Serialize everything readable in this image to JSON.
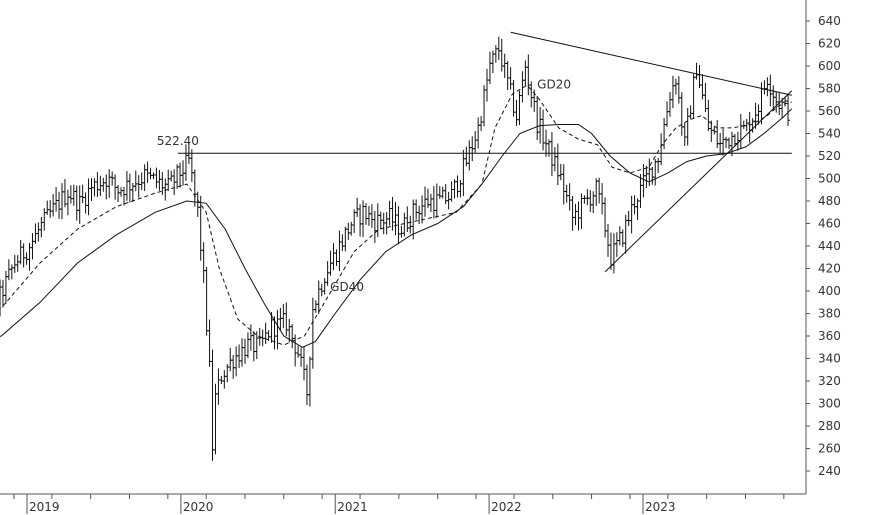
{
  "chart_data": {
    "type": "line",
    "title": "",
    "xlabel": "",
    "ylabel": "",
    "ylim": [
      240,
      640
    ],
    "xlim": [
      "2018-08-01",
      "2023-12-20"
    ],
    "y_ticks": [
      "640",
      "620",
      "600",
      "580",
      "560",
      "540",
      "520",
      "500",
      "480",
      "460",
      "440",
      "420",
      "400",
      "380",
      "360",
      "340",
      "320",
      "300",
      "280",
      "260",
      "240"
    ],
    "x_ticks": [
      {
        "label": "2019",
        "date": "2019-01-01"
      },
      {
        "label": "2020",
        "date": "2020-01-01"
      },
      {
        "label": "2021",
        "date": "2021-01-01"
      },
      {
        "label": "2022",
        "date": "2022-01-01"
      },
      {
        "label": "2023",
        "date": "2023-01-01"
      }
    ],
    "grid": false,
    "y_axis_side": "right",
    "colors": {
      "line": "#111111",
      "axis": "#555555",
      "text": "#333333"
    },
    "series": [
      {
        "style": "ohlc-bars",
        "x": [
          "2018-08-06",
          "2018-09-03",
          "2018-10-01",
          "2018-10-29",
          "2018-12-03",
          "2019-01-07",
          "2019-02-04",
          "2019-03-04",
          "2019-04-08",
          "2019-05-06",
          "2019-06-03",
          "2019-07-08",
          "2019-08-05",
          "2019-09-02",
          "2019-10-07",
          "2019-11-04",
          "2019-12-02",
          "2019-12-30",
          "2020-01-20",
          "2020-02-10",
          "2020-02-24",
          "2020-03-09",
          "2020-03-16",
          "2020-03-23",
          "2020-04-06",
          "2020-05-04",
          "2020-06-08",
          "2020-07-06",
          "2020-08-03",
          "2020-09-07",
          "2020-10-05",
          "2020-10-26",
          "2020-11-09",
          "2020-12-07",
          "2021-01-11",
          "2021-02-08",
          "2021-03-08",
          "2021-04-05",
          "2021-05-10",
          "2021-06-07",
          "2021-07-05",
          "2021-08-09",
          "2021-09-06",
          "2021-10-04",
          "2021-11-08",
          "2021-12-06",
          "2022-01-03",
          "2022-01-24",
          "2022-02-14",
          "2022-03-07",
          "2022-03-28",
          "2022-04-25",
          "2022-05-23",
          "2022-06-20",
          "2022-07-18",
          "2022-08-15",
          "2022-09-12",
          "2022-09-26",
          "2022-10-17",
          "2022-11-14",
          "2022-12-12",
          "2023-01-09",
          "2023-02-06",
          "2023-03-06",
          "2023-03-20",
          "2023-04-10",
          "2023-05-08",
          "2023-06-05",
          "2023-07-03",
          "2023-08-07",
          "2023-09-04",
          "2023-10-02",
          "2023-10-23",
          "2023-11-13",
          "2023-12-11"
        ],
        "values": [
          390,
          380,
          376,
          395,
          425,
          440,
          458,
          472,
          488,
          478,
          492,
          500,
          490,
          495,
          502,
          497,
          492,
          505,
          515,
          470,
          410,
          330,
          262,
          305,
          325,
          340,
          352,
          350,
          368,
          372,
          345,
          310,
          385,
          415,
          440,
          460,
          470,
          462,
          465,
          455,
          470,
          480,
          480,
          485,
          515,
          545,
          600,
          615,
          585,
          555,
          600,
          550,
          525,
          500,
          465,
          478,
          490,
          470,
          430,
          450,
          480,
          500,
          520,
          575,
          590,
          530,
          600,
          545,
          530,
          540,
          545,
          565,
          590,
          570,
          560
        ]
      },
      {
        "name": "GD20",
        "style": "dashed",
        "x": [
          "2018-08-01",
          "2018-11-01",
          "2019-02-01",
          "2019-05-01",
          "2019-08-01",
          "2019-11-01",
          "2020-01-15",
          "2020-03-01",
          "2020-04-01",
          "2020-05-15",
          "2020-07-01",
          "2020-09-01",
          "2020-10-20",
          "2020-12-15",
          "2021-02-15",
          "2021-04-15",
          "2021-06-15",
          "2021-08-15",
          "2021-10-15",
          "2021-12-15",
          "2022-01-15",
          "2022-02-25",
          "2022-04-01",
          "2022-05-01",
          "2022-06-15",
          "2022-08-01",
          "2022-09-15",
          "2022-10-20",
          "2022-12-01",
          "2023-01-15",
          "2023-02-15",
          "2023-03-20",
          "2023-04-20",
          "2023-05-20",
          "2023-06-25",
          "2023-08-01",
          "2023-09-15",
          "2023-10-20",
          "2023-11-20",
          "2023-12-20"
        ],
        "values": [
          378,
          385,
          425,
          455,
          475,
          487,
          495,
          470,
          420,
          375,
          360,
          352,
          360,
          395,
          435,
          455,
          460,
          465,
          470,
          495,
          545,
          575,
          583,
          570,
          545,
          535,
          530,
          510,
          505,
          510,
          530,
          545,
          552,
          556,
          545,
          545,
          548,
          555,
          565,
          568
        ]
      },
      {
        "name": "GD40",
        "style": "solid",
        "x": [
          "2018-08-01",
          "2018-11-01",
          "2019-02-01",
          "2019-05-01",
          "2019-08-01",
          "2019-11-01",
          "2020-01-15",
          "2020-03-01",
          "2020-04-15",
          "2020-06-01",
          "2020-07-15",
          "2020-09-01",
          "2020-10-15",
          "2020-11-15",
          "2021-01-01",
          "2021-03-01",
          "2021-05-01",
          "2021-07-01",
          "2021-09-01",
          "2021-11-01",
          "2021-12-15",
          "2022-02-01",
          "2022-03-15",
          "2022-05-01",
          "2022-06-15",
          "2022-08-01",
          "2022-09-01",
          "2022-10-15",
          "2022-12-01",
          "2023-01-15",
          "2023-03-01",
          "2023-04-15",
          "2023-06-01",
          "2023-07-15",
          "2023-09-01",
          "2023-10-15",
          "2023-12-01",
          "2023-12-20"
        ],
        "values": [
          350,
          360,
          390,
          425,
          450,
          470,
          480,
          478,
          455,
          420,
          390,
          360,
          350,
          355,
          380,
          410,
          435,
          450,
          460,
          475,
          495,
          520,
          540,
          547,
          548,
          548,
          540,
          520,
          505,
          497,
          505,
          515,
          520,
          522,
          528,
          540,
          555,
          562
        ]
      }
    ],
    "lines": [
      {
        "kind": "horizontal",
        "y": 522.4,
        "x": [
          "2019-12-25",
          "2023-12-20"
        ]
      },
      {
        "kind": "trend",
        "x": [
          "2022-02-21",
          "2023-12-20"
        ],
        "y": [
          630,
          574
        ]
      },
      {
        "kind": "trend",
        "x": [
          "2022-10-03",
          "2023-12-20"
        ],
        "y": [
          417,
          578
        ]
      }
    ],
    "annotations": [
      {
        "text": "522.40",
        "x": "2019-11-05",
        "y": 530
      },
      {
        "text": "GD20",
        "x": "2022-04-25",
        "y": 580
      },
      {
        "text": "GD40",
        "x": "2020-12-20",
        "y": 400
      }
    ]
  }
}
